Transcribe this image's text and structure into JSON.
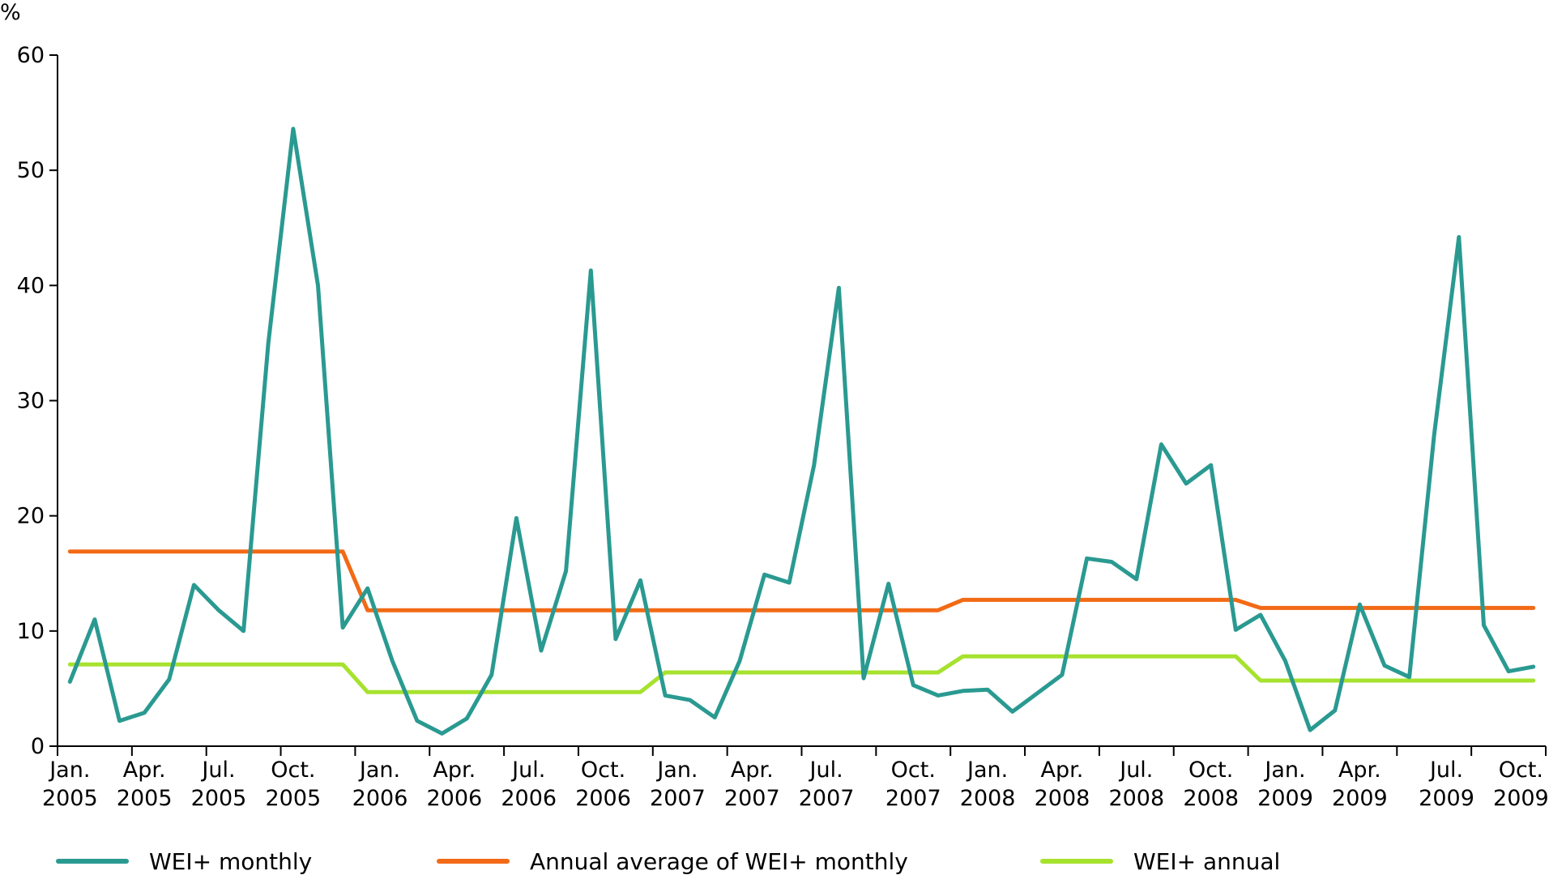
{
  "chart_data": {
    "type": "line",
    "ylabel": "%",
    "ylim": [
      0,
      60
    ],
    "yticks": [
      0,
      10,
      20,
      30,
      40,
      50,
      60
    ],
    "grid": false,
    "legend_position": "bottom",
    "x": [
      "Jan. 2005",
      "Feb. 2005",
      "Mar. 2005",
      "Apr. 2005",
      "May 2005",
      "Jun. 2005",
      "Jul. 2005",
      "Aug. 2005",
      "Sep. 2005",
      "Oct. 2005",
      "Nov. 2005",
      "Dec. 2005",
      "Jan. 2006",
      "Feb. 2006",
      "Mar. 2006",
      "Apr. 2006",
      "May 2006",
      "Jun. 2006",
      "Jul. 2006",
      "Aug. 2006",
      "Sep. 2006",
      "Oct. 2006",
      "Nov. 2006",
      "Dec. 2006",
      "Jan. 2007",
      "Feb. 2007",
      "Mar. 2007",
      "Apr. 2007",
      "May 2007",
      "Jun. 2007",
      "Jul. 2007",
      "Aug. 2007",
      "Sep. 2007",
      "Oct. 2007",
      "Nov. 2007",
      "Dec. 2007",
      "Jan. 2008",
      "Feb. 2008",
      "Mar. 2008",
      "Apr. 2008",
      "May 2008",
      "Jun. 2008",
      "Jul. 2008",
      "Aug. 2008",
      "Sep. 2008",
      "Oct. 2008",
      "Nov. 2008",
      "Dec. 2008",
      "Jan. 2009",
      "Feb. 2009",
      "Mar. 2009",
      "Apr. 2009",
      "May 2009",
      "Jun. 2009",
      "Jul. 2009",
      "Aug. 2009",
      "Sep. 2009",
      "Oct. 2009",
      "Nov. 2009",
      "Dec. 2009"
    ],
    "x_tick_labels": [
      {
        "index": 0,
        "lines": [
          "Jan.",
          "2005"
        ]
      },
      {
        "index": 3,
        "lines": [
          "Apr.",
          "2005"
        ]
      },
      {
        "index": 6,
        "lines": [
          "Jul.",
          "2005"
        ]
      },
      {
        "index": 9,
        "lines": [
          "Oct.",
          "2005"
        ]
      },
      {
        "index": 12.5,
        "lines": [
          "Jan.",
          "2006"
        ]
      },
      {
        "index": 15.5,
        "lines": [
          "Apr.",
          "2006"
        ]
      },
      {
        "index": 18.5,
        "lines": [
          "Jul.",
          "2006"
        ]
      },
      {
        "index": 21.5,
        "lines": [
          "Oct.",
          "2006"
        ]
      },
      {
        "index": 24.5,
        "lines": [
          "Jan.",
          "2007"
        ]
      },
      {
        "index": 27.5,
        "lines": [
          "Apr.",
          "2007"
        ]
      },
      {
        "index": 30.5,
        "lines": [
          "Jul.",
          "2007"
        ]
      },
      {
        "index": 34,
        "lines": [
          "Oct.",
          "2007"
        ]
      },
      {
        "index": 37,
        "lines": [
          "Jan.",
          "2008"
        ]
      },
      {
        "index": 40,
        "lines": [
          "Apr.",
          "2008"
        ]
      },
      {
        "index": 43,
        "lines": [
          "Jul.",
          "2008"
        ]
      },
      {
        "index": 46,
        "lines": [
          "Oct.",
          "2008"
        ]
      },
      {
        "index": 49,
        "lines": [
          "Jan.",
          "2009"
        ]
      },
      {
        "index": 52,
        "lines": [
          "Apr.",
          "2009"
        ]
      },
      {
        "index": 55.5,
        "lines": [
          "Jul.",
          "2009"
        ]
      },
      {
        "index": 58.5,
        "lines": [
          "Oct.",
          "2009"
        ]
      }
    ],
    "series": [
      {
        "name": "WEI+ monthly",
        "color": "#2a9a91",
        "values": [
          5.6,
          11.0,
          2.2,
          2.9,
          5.8,
          14.0,
          11.8,
          10.0,
          35.0,
          53.6,
          40.0,
          10.3,
          13.7,
          7.4,
          2.2,
          1.1,
          2.4,
          6.2,
          19.8,
          8.3,
          15.2,
          41.3,
          9.3,
          14.4,
          4.4,
          4.0,
          2.5,
          7.4,
          14.9,
          14.2,
          24.4,
          39.8,
          5.9,
          14.1,
          5.3,
          4.4,
          4.8,
          4.9,
          3.0,
          4.6,
          6.2,
          16.3,
          16.0,
          14.5,
          26.2,
          22.8,
          24.4,
          10.1,
          11.4,
          7.4,
          1.4,
          3.1,
          12.3,
          7.0,
          6.0,
          27.0,
          44.2,
          10.5,
          6.5,
          6.9
        ]
      },
      {
        "name": "Annual average of WEI+ monthly",
        "color": "#f26a16",
        "values": [
          16.9,
          16.9,
          16.9,
          16.9,
          16.9,
          16.9,
          16.9,
          16.9,
          16.9,
          16.9,
          16.9,
          16.9,
          11.8,
          11.8,
          11.8,
          11.8,
          11.8,
          11.8,
          11.8,
          11.8,
          11.8,
          11.8,
          11.8,
          11.8,
          11.8,
          11.8,
          11.8,
          11.8,
          11.8,
          11.8,
          11.8,
          11.8,
          11.8,
          11.8,
          11.8,
          11.8,
          12.7,
          12.7,
          12.7,
          12.7,
          12.7,
          12.7,
          12.7,
          12.7,
          12.7,
          12.7,
          12.7,
          12.7,
          12.0,
          12.0,
          12.0,
          12.0,
          12.0,
          12.0,
          12.0,
          12.0,
          12.0,
          12.0,
          12.0,
          12.0
        ]
      },
      {
        "name": "WEI+ annual",
        "color": "#a6e22e",
        "values": [
          7.1,
          7.1,
          7.1,
          7.1,
          7.1,
          7.1,
          7.1,
          7.1,
          7.1,
          7.1,
          7.1,
          7.1,
          4.7,
          4.7,
          4.7,
          4.7,
          4.7,
          4.7,
          4.7,
          4.7,
          4.7,
          4.7,
          4.7,
          4.7,
          6.4,
          6.4,
          6.4,
          6.4,
          6.4,
          6.4,
          6.4,
          6.4,
          6.4,
          6.4,
          6.4,
          6.4,
          7.8,
          7.8,
          7.8,
          7.8,
          7.8,
          7.8,
          7.8,
          7.8,
          7.8,
          7.8,
          7.8,
          7.8,
          5.7,
          5.7,
          5.7,
          5.7,
          5.7,
          5.7,
          5.7,
          5.7,
          5.7,
          5.7,
          5.7,
          5.7
        ]
      }
    ]
  }
}
